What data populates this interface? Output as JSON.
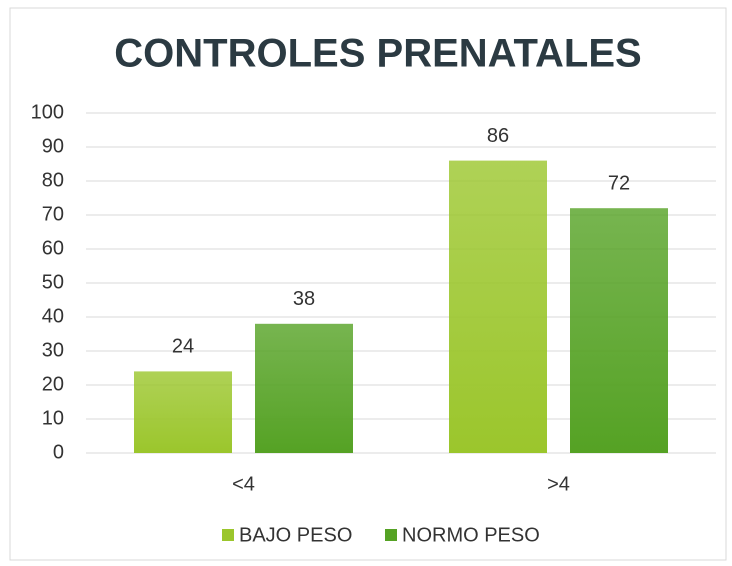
{
  "chart_data": {
    "type": "bar",
    "title": "CONTROLES PRENATALES",
    "categories": [
      "<4",
      ">4"
    ],
    "series": [
      {
        "name": "BAJO PESO",
        "color": "#9bc62c",
        "values": [
          24,
          86
        ]
      },
      {
        "name": "NORMO PESO",
        "color": "#55a224",
        "values": [
          38,
          72
        ]
      }
    ],
    "ylim": [
      0,
      100
    ],
    "yticks": [
      0,
      10,
      20,
      30,
      40,
      50,
      60,
      70,
      80,
      90,
      100
    ],
    "grid": true,
    "legend": "bottom",
    "data_labels": true
  }
}
